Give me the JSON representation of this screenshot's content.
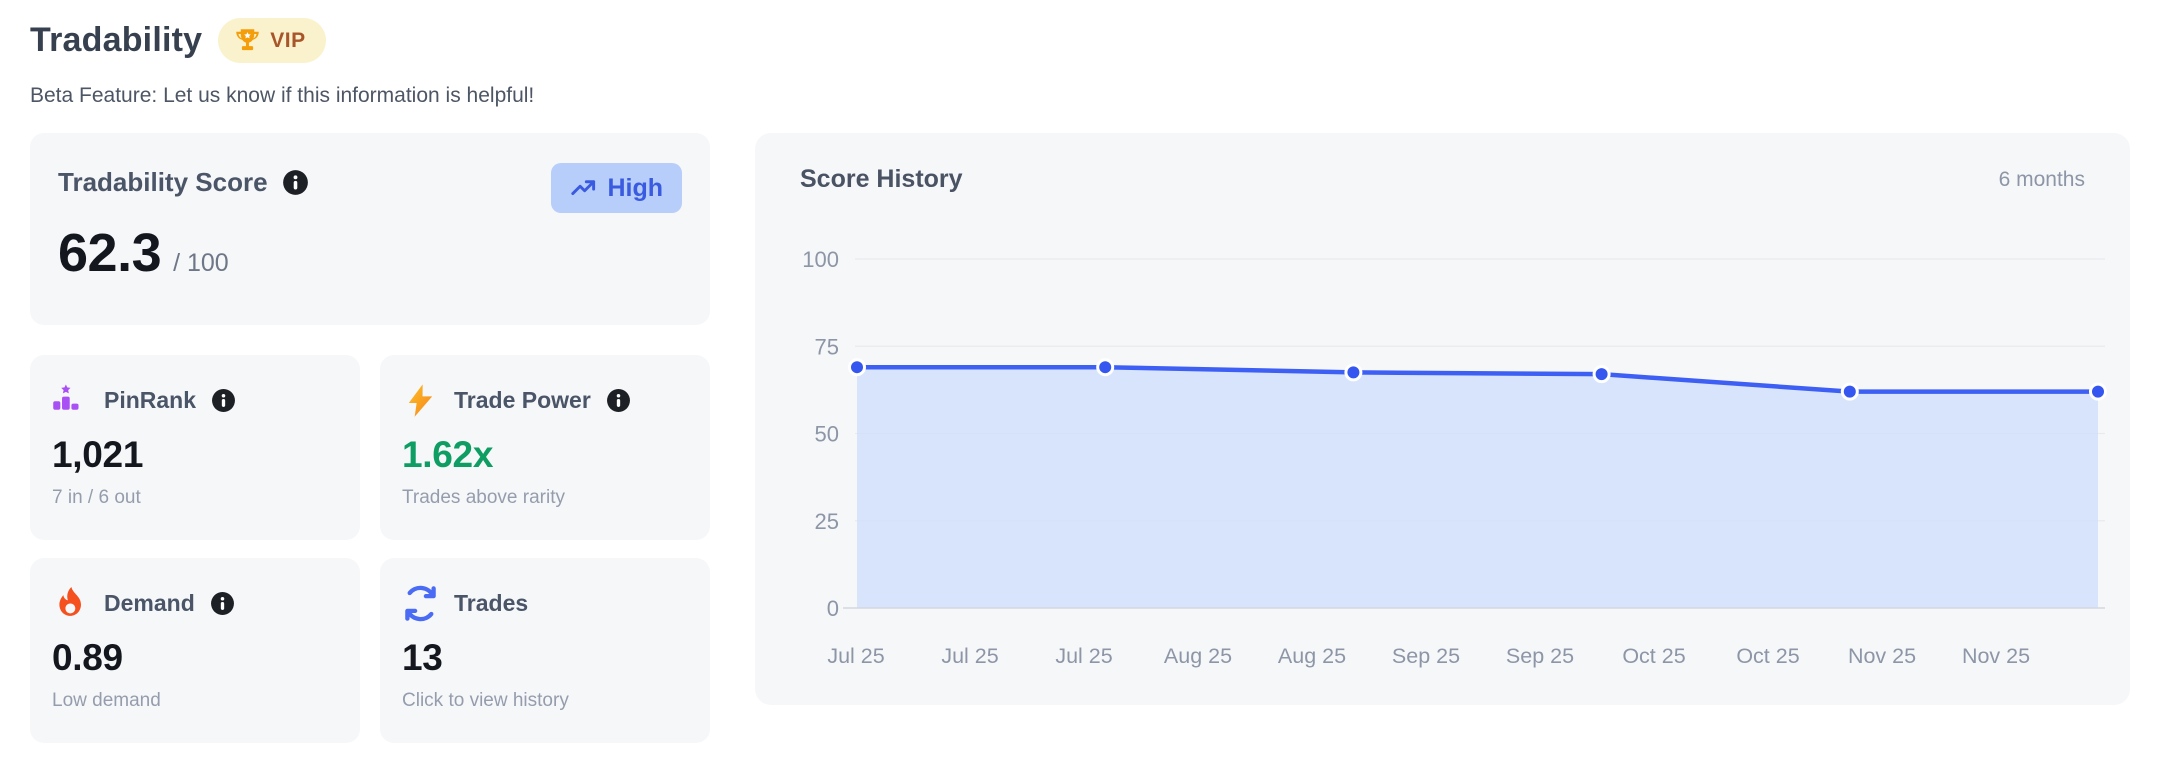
{
  "header": {
    "title": "Tradability",
    "vip_label": "VIP",
    "subtitle": "Beta Feature: Let us know if this information is helpful!"
  },
  "score_card": {
    "label": "Tradability Score",
    "badge_label": "High",
    "value": "62.3",
    "max_label": "/ 100"
  },
  "stats": [
    {
      "label": "PinRank",
      "value": "1,021",
      "sub": "7 in / 6 out",
      "icon": "podium-icon",
      "value_color": "#14171e"
    },
    {
      "label": "Trade Power",
      "value": "1.62x",
      "sub": "Trades above rarity",
      "icon": "lightning-icon",
      "value_color": "#0e9d62"
    },
    {
      "label": "Demand",
      "value": "0.89",
      "sub": "Low demand",
      "icon": "flame-icon",
      "value_color": "#14171e"
    },
    {
      "label": "Trades",
      "value": "13",
      "sub": "Click to view history",
      "icon": "trades-icon",
      "value_color": "#14171e"
    }
  ],
  "chart_data": {
    "type": "area",
    "title": "Score History",
    "range_label": "6 months",
    "values": [
      69,
      69,
      67.5,
      67,
      62,
      62
    ],
    "x_tick_labels": [
      "Jul 25",
      "Jul 25",
      "Jul 25",
      "Aug 25",
      "Aug 25",
      "Sep 25",
      "Sep 25",
      "Oct 25",
      "Oct 25",
      "Nov 25",
      "Nov 25"
    ],
    "y_ticks": [
      0,
      25,
      50,
      75,
      100
    ],
    "ylim": [
      0,
      100
    ],
    "grid": true,
    "colors": {
      "line": "#3e5ff4",
      "dot": "#3556ef",
      "area": "#cfdefb",
      "grid": "#e8eaef",
      "axis": "#d4d8df",
      "tick_text": "#8d96a6"
    }
  }
}
